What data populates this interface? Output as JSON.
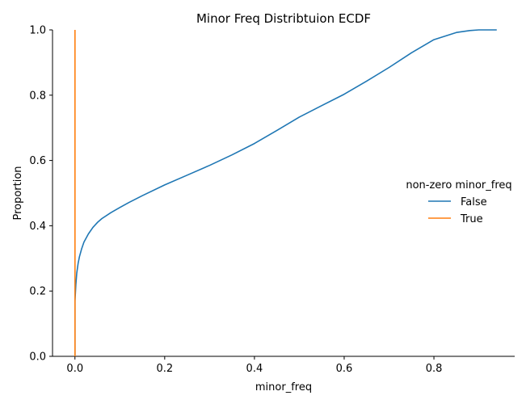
{
  "chart_data": {
    "type": "line",
    "title": "Minor Freq Distribtuion ECDF",
    "xlabel": "minor_freq",
    "ylabel": "Proportion",
    "xlim": [
      -0.05,
      0.98
    ],
    "ylim": [
      0.0,
      1.0
    ],
    "x_ticks": [
      0.0,
      0.2,
      0.4,
      0.6,
      0.8
    ],
    "x_tick_labels": [
      "0.0",
      "0.2",
      "0.4",
      "0.6",
      "0.8"
    ],
    "y_ticks": [
      0.0,
      0.2,
      0.4,
      0.6,
      0.8,
      1.0
    ],
    "y_tick_labels": [
      "0.0",
      "0.2",
      "0.4",
      "0.6",
      "0.8",
      "1.0"
    ],
    "grid": false,
    "legend": {
      "title": "non-zero minor_freq",
      "placement": "right"
    },
    "series": [
      {
        "name": "False",
        "color": "#1f77b4",
        "x": [
          0.0,
          0.0,
          0.002,
          0.004,
          0.007,
          0.01,
          0.015,
          0.02,
          0.03,
          0.04,
          0.05,
          0.06,
          0.08,
          0.1,
          0.12,
          0.15,
          0.2,
          0.25,
          0.3,
          0.35,
          0.4,
          0.45,
          0.5,
          0.55,
          0.6,
          0.65,
          0.7,
          0.75,
          0.8,
          0.85,
          0.88,
          0.9,
          0.92,
          0.94
        ],
        "y": [
          0.0,
          0.17,
          0.22,
          0.255,
          0.285,
          0.305,
          0.33,
          0.35,
          0.375,
          0.395,
          0.41,
          0.422,
          0.44,
          0.456,
          0.471,
          0.492,
          0.525,
          0.555,
          0.585,
          0.617,
          0.652,
          0.692,
          0.733,
          0.768,
          0.803,
          0.843,
          0.885,
          0.93,
          0.97,
          0.992,
          0.998,
          1.0,
          1.0,
          1.0
        ]
      },
      {
        "name": "True",
        "color": "#ff7f0e",
        "x": [
          0.0,
          0.0
        ],
        "y": [
          0.0,
          1.0
        ]
      }
    ]
  }
}
